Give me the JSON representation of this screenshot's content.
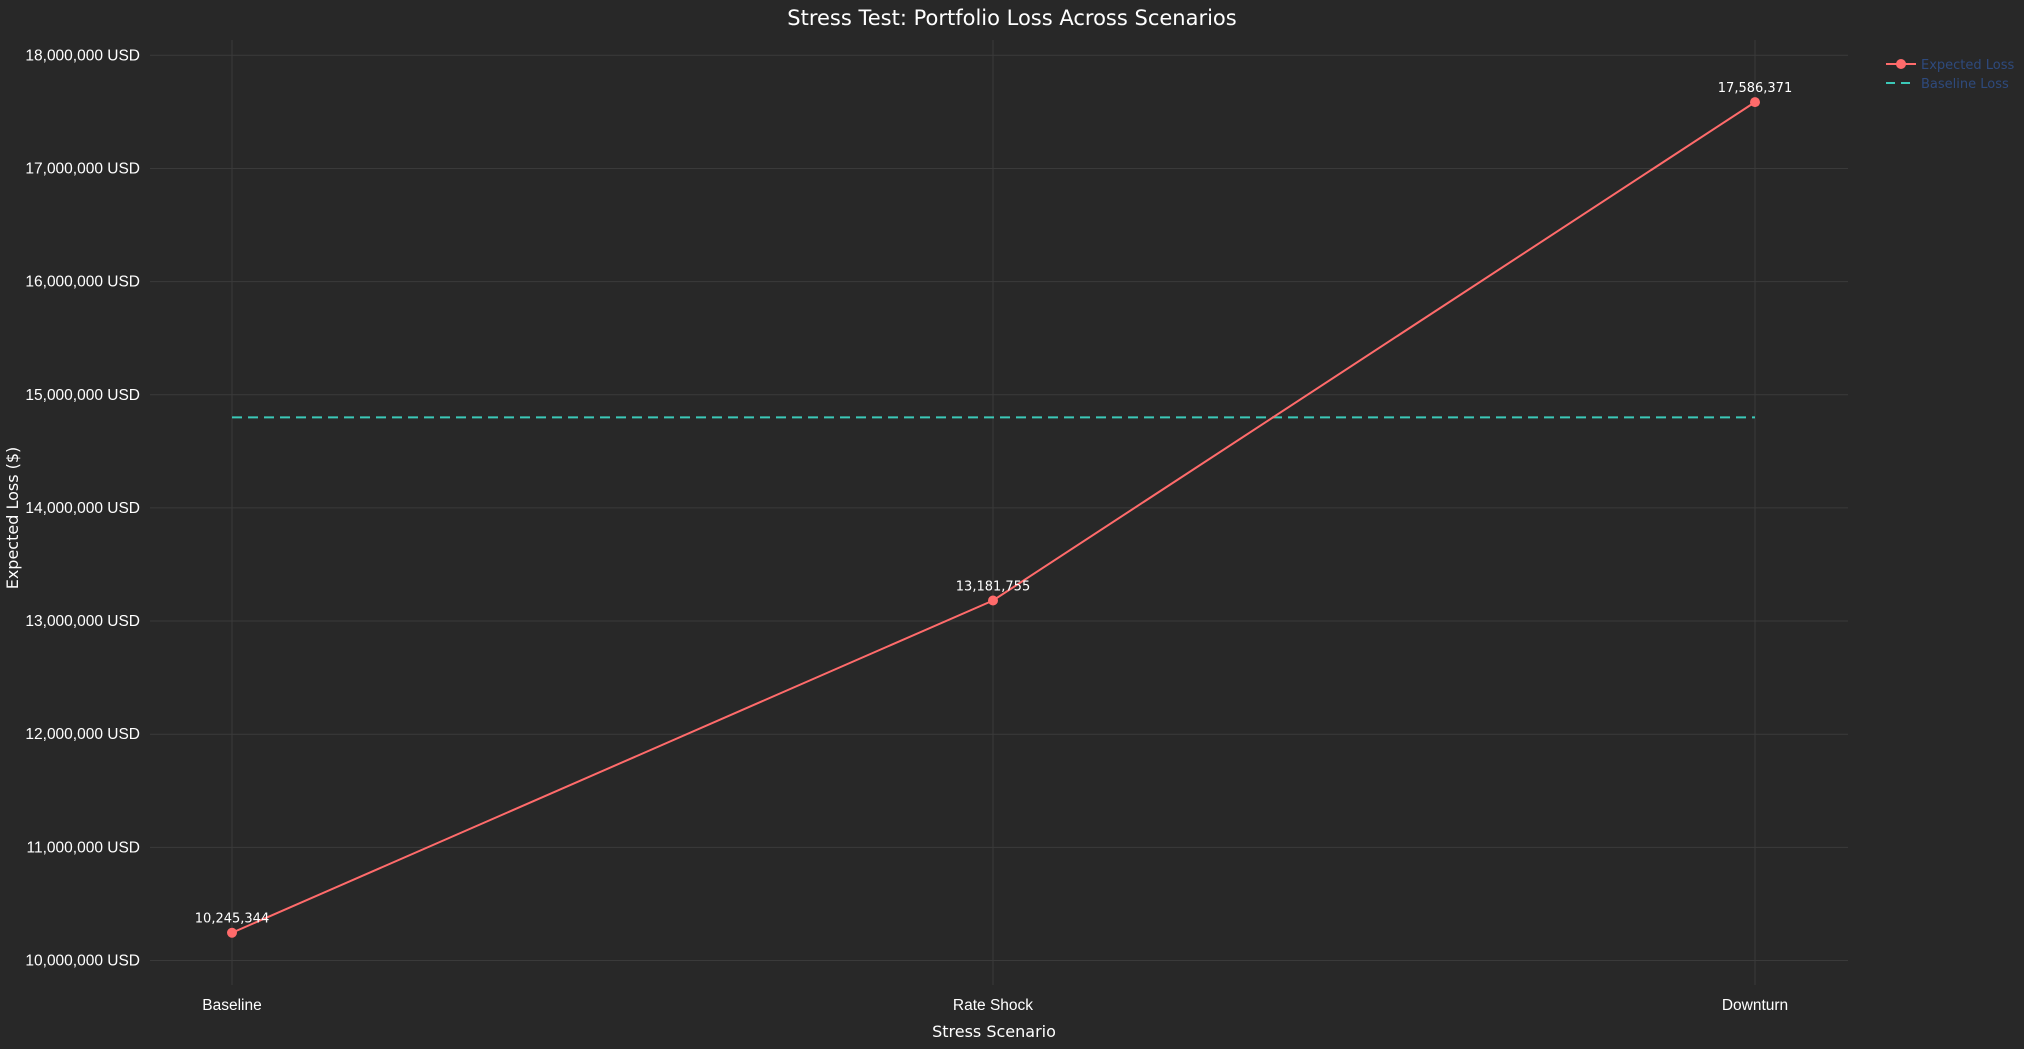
{
  "chart_data": {
    "type": "line",
    "title": "Stress Test: Portfolio Loss Across Scenarios",
    "xlabel": "Stress Scenario",
    "ylabel": "Expected Loss ($)",
    "categories": [
      "Baseline",
      "Rate Shock",
      "Downturn"
    ],
    "ylim": [
      9800000,
      18100000
    ],
    "y_ticks": [
      10000000,
      11000000,
      12000000,
      13000000,
      14000000,
      15000000,
      16000000,
      17000000,
      18000000
    ],
    "y_tick_labels": [
      "10,000,000 USD",
      "11,000,000 USD",
      "12,000,000 USD",
      "13,000,000 USD",
      "14,000,000 USD",
      "15,000,000 USD",
      "16,000,000 USD",
      "17,000,000 USD",
      "18,000,000 USD"
    ],
    "grid": true,
    "legend_position": "top-right",
    "series": [
      {
        "name": "Expected Loss",
        "values": [
          10245344,
          13181755,
          17586371
        ],
        "data_labels": [
          "10,245,344",
          "13,181,755",
          "17,586,371"
        ],
        "color": "#ff6b6b",
        "mode": "lines+markers+text"
      },
      {
        "name": "Baseline Loss",
        "values": [
          14800000,
          14800000,
          14800000
        ],
        "color": "#3bc9b8",
        "dash": "dashed"
      }
    ],
    "legend_text_color": "#2e4a7d",
    "background_color": "#282828"
  }
}
